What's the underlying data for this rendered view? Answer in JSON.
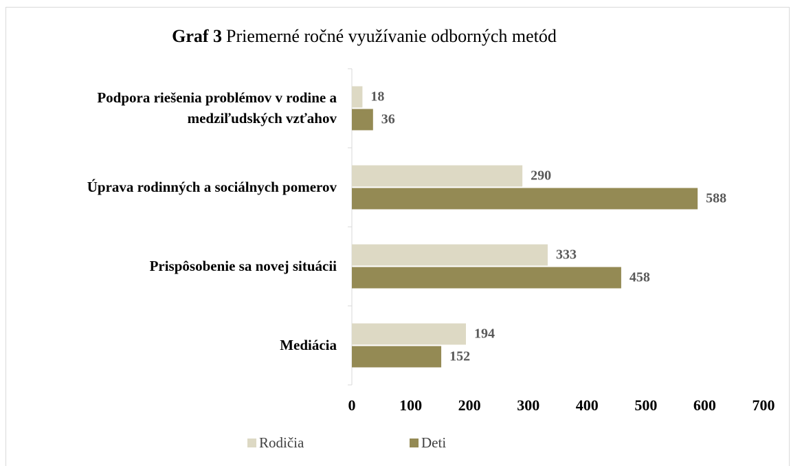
{
  "chart_data": {
    "type": "hbar",
    "title_label": "Graf 3",
    "title": "Priemerné ročné využívanie odborných metód",
    "categories": [
      "Podpora riešenia problémov v rodine a medziľudských vzťahov",
      "Úprava rodinných a sociálnych pomerov",
      "Prispôsobenie sa novej situácii",
      "Mediácia"
    ],
    "series": [
      {
        "name": "Rodičia",
        "color": "#ddd9c4",
        "values": [
          18,
          290,
          333,
          194
        ]
      },
      {
        "name": "Deti",
        "color": "#948a54",
        "values": [
          36,
          588,
          458,
          152
        ]
      }
    ],
    "xlim": [
      0,
      700
    ],
    "xticks": [
      0,
      100,
      200,
      300,
      400,
      500,
      600,
      700
    ],
    "grid": false,
    "legend": "bottom"
  }
}
